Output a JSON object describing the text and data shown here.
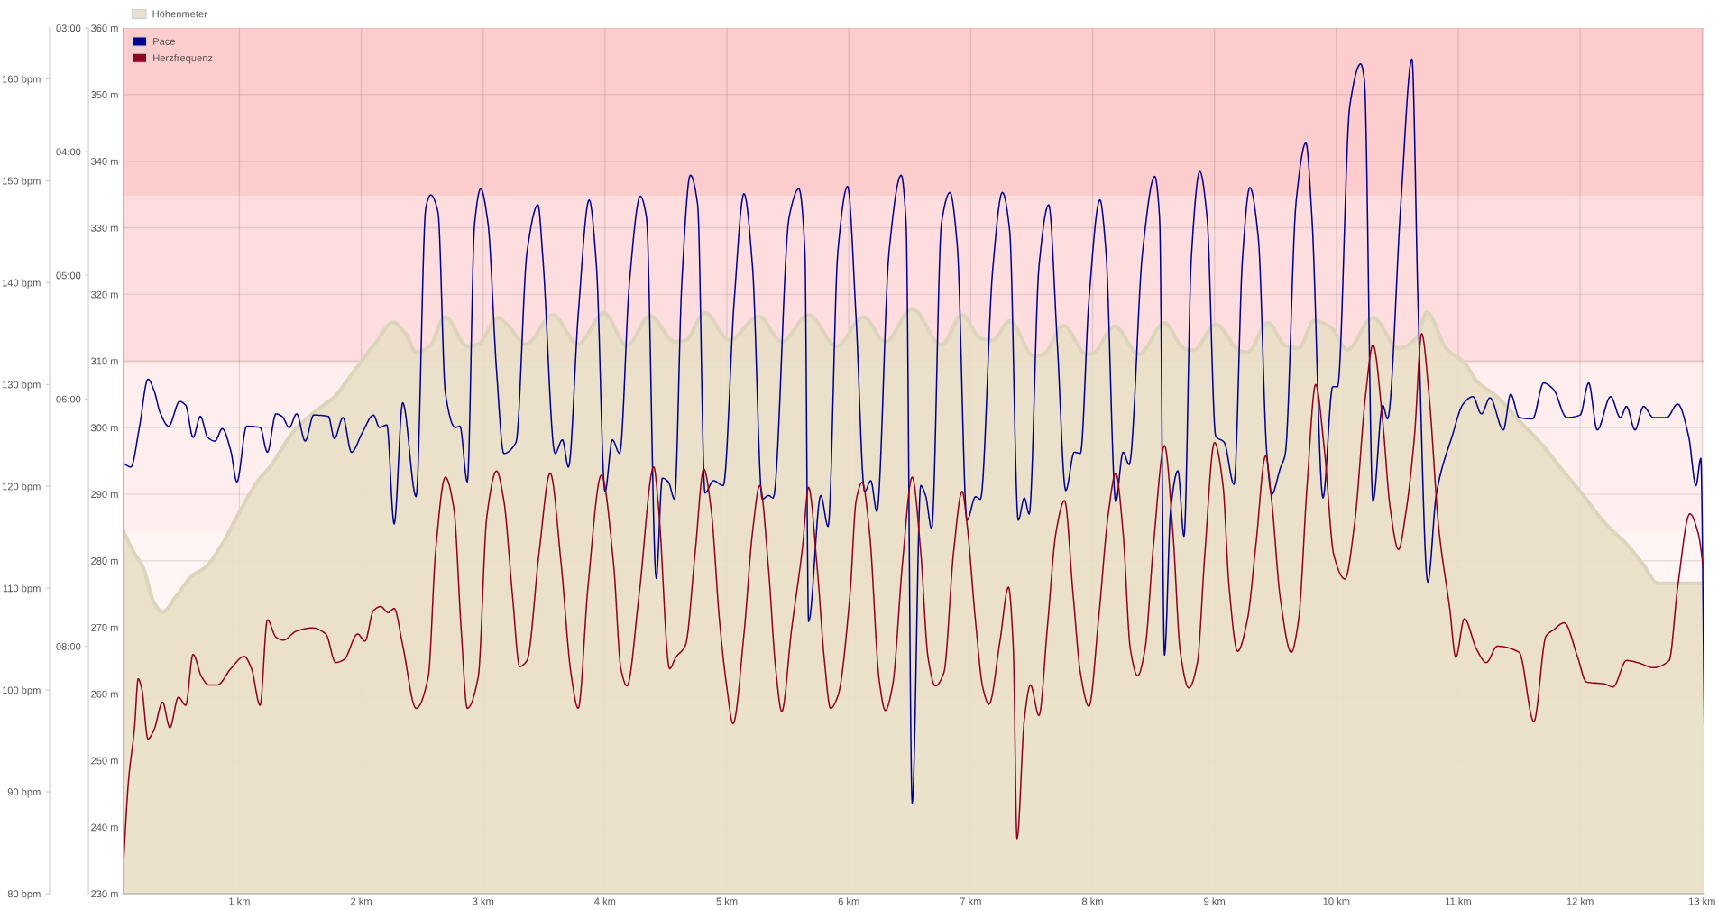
{
  "chart_data": {
    "type": "area",
    "series": [
      {
        "name": "Höhenmeter",
        "color": "#e9dfc6",
        "x": [
          0.05,
          0.13,
          0.21,
          0.3,
          0.37,
          0.48,
          0.61,
          0.72,
          0.86,
          0.98,
          1.15,
          1.26,
          1.44,
          1.63,
          1.79,
          1.89,
          2.02,
          2.11,
          2.26,
          2.37,
          2.45,
          2.56,
          2.69,
          2.87,
          2.96,
          3.12,
          3.2,
          3.35,
          3.57,
          3.78,
          3.99,
          4.18,
          4.37,
          4.57,
          4.66,
          4.82,
          5.02,
          5.26,
          5.45,
          5.67,
          5.9,
          6.12,
          6.3,
          6.52,
          6.76,
          6.93,
          7.08,
          7.18,
          7.32,
          7.52,
          7.6,
          7.76,
          7.95,
          8.0,
          8.18,
          8.38,
          8.59,
          8.75,
          8.83,
          9.01,
          9.21,
          9.27,
          9.44,
          9.58,
          9.69,
          9.82,
          9.96,
          10.09,
          10.3,
          10.51,
          10.66,
          10.74,
          10.9,
          11.06,
          11.15,
          11.32,
          11.5,
          11.67,
          11.85,
          12.03,
          12.2,
          12.38,
          12.51,
          12.64,
          13.02
        ],
        "values": [
          284.4,
          281.4,
          279.0,
          273.7,
          272.3,
          274.6,
          277.7,
          279.0,
          282.5,
          286.6,
          291.9,
          294.3,
          299.3,
          302.5,
          304.8,
          307.2,
          310.4,
          312.5,
          315.8,
          313.9,
          311.3,
          312.2,
          316.6,
          312.2,
          312.5,
          316.5,
          315.4,
          312.5,
          316.9,
          312.5,
          317.2,
          312.3,
          316.8,
          312.9,
          313.1,
          317.2,
          313.1,
          316.7,
          312.9,
          316.9,
          312.2,
          316.6,
          312.9,
          317.8,
          312.4,
          316.9,
          313.4,
          313.1,
          316.0,
          310.7,
          311.0,
          315.3,
          311.0,
          311.1,
          315.2,
          311.0,
          315.7,
          311.9,
          311.6,
          315.5,
          311.5,
          311.3,
          315.7,
          312.3,
          311.9,
          316.1,
          314.9,
          311.7,
          316.5,
          311.9,
          313.5,
          317.3,
          311.9,
          309.5,
          307.0,
          304.6,
          301.0,
          297.8,
          293.7,
          289.7,
          285.7,
          282.5,
          279.6,
          276.6,
          276.6
        ]
      },
      {
        "name": "Pace",
        "type": "line",
        "axis": "y2",
        "color": "#000091",
        "x": [
          0.05,
          0.11,
          0.18,
          0.25,
          0.3,
          0.35,
          0.42,
          0.51,
          0.56,
          0.62,
          0.68,
          0.74,
          0.8,
          0.86,
          0.93,
          0.98,
          1.06,
          1.17,
          1.23,
          1.3,
          1.35,
          1.41,
          1.47,
          1.54,
          1.61,
          1.73,
          1.78,
          1.85,
          1.92,
          2.01,
          2.1,
          2.15,
          2.21,
          2.27,
          2.34,
          2.45,
          2.53,
          2.57,
          2.63,
          2.69,
          2.77,
          2.81,
          2.87,
          2.93,
          2.98,
          3.04,
          3.11,
          3.17,
          3.27,
          3.36,
          3.45,
          3.49,
          3.59,
          3.65,
          3.7,
          3.78,
          3.87,
          3.93,
          4.0,
          4.06,
          4.12,
          4.2,
          4.29,
          4.34,
          4.42,
          4.47,
          4.52,
          4.57,
          4.63,
          4.7,
          4.76,
          4.82,
          4.89,
          4.97,
          5.06,
          5.14,
          5.21,
          5.29,
          5.34,
          5.38,
          5.51,
          5.59,
          5.64,
          5.67,
          5.77,
          5.83,
          5.91,
          5.99,
          6.06,
          6.13,
          6.18,
          6.23,
          6.33,
          6.43,
          6.47,
          6.52,
          6.59,
          6.63,
          6.68,
          6.76,
          6.83,
          6.89,
          6.97,
          7.04,
          7.08,
          7.18,
          7.26,
          7.32,
          7.39,
          7.44,
          7.48,
          7.56,
          7.64,
          7.71,
          7.78,
          7.85,
          7.9,
          7.97,
          8.06,
          8.11,
          8.19,
          8.25,
          8.3,
          8.41,
          8.51,
          8.55,
          8.59,
          8.64,
          8.7,
          8.75,
          8.81,
          8.88,
          8.94,
          9.01,
          9.08,
          9.16,
          9.23,
          9.29,
          9.36,
          9.43,
          9.47,
          9.54,
          9.58,
          9.67,
          9.75,
          9.8,
          9.89,
          9.97,
          10.01,
          10.11,
          10.2,
          10.23,
          10.3,
          10.38,
          10.42,
          10.53,
          10.62,
          10.67,
          10.75,
          10.82,
          10.95,
          11.04,
          11.12,
          11.19,
          11.26,
          11.37,
          11.43,
          11.5,
          11.61,
          11.7,
          11.78,
          11.89,
          12.0,
          12.07,
          12.14,
          12.25,
          12.33,
          12.38,
          12.45,
          12.52,
          12.6,
          12.71,
          12.8,
          12.89,
          12.95,
          12.99,
          13.02
        ],
        "values": [
          6.52,
          6.55,
          6.23,
          5.84,
          5.93,
          6.11,
          6.22,
          6.02,
          6.05,
          6.31,
          6.14,
          6.31,
          6.34,
          6.24,
          6.42,
          6.67,
          6.22,
          6.23,
          6.43,
          6.12,
          6.14,
          6.23,
          6.12,
          6.34,
          6.13,
          6.14,
          6.32,
          6.15,
          6.43,
          6.27,
          6.13,
          6.23,
          6.21,
          7.01,
          6.03,
          6.79,
          4.45,
          4.35,
          4.49,
          5.95,
          6.23,
          6.22,
          6.67,
          4.58,
          4.3,
          4.58,
          5.77,
          6.44,
          6.35,
          4.81,
          4.43,
          4.86,
          6.44,
          6.33,
          6.55,
          5.32,
          4.39,
          4.93,
          6.75,
          6.33,
          6.44,
          5.06,
          4.36,
          4.53,
          7.45,
          6.64,
          6.67,
          6.81,
          5.06,
          4.19,
          4.43,
          6.76,
          6.66,
          6.7,
          5.2,
          4.34,
          4.93,
          6.81,
          6.78,
          6.8,
          4.53,
          4.3,
          4.81,
          7.8,
          6.78,
          7.03,
          4.81,
          4.28,
          5.35,
          6.75,
          6.66,
          6.91,
          4.81,
          4.19,
          4.58,
          9.27,
          6.7,
          6.78,
          7.05,
          4.58,
          4.33,
          4.76,
          6.98,
          6.79,
          6.81,
          4.96,
          4.33,
          4.64,
          6.98,
          6.8,
          6.93,
          4.93,
          4.43,
          5.54,
          6.74,
          6.43,
          6.44,
          5.2,
          4.39,
          4.81,
          6.83,
          6.43,
          6.53,
          4.81,
          4.2,
          4.54,
          8.07,
          6.9,
          6.58,
          7.11,
          4.86,
          4.16,
          4.54,
          6.3,
          6.35,
          6.69,
          4.86,
          4.29,
          4.7,
          6.45,
          6.77,
          6.56,
          6.45,
          4.4,
          3.93,
          4.54,
          6.8,
          5.9,
          5.9,
          3.63,
          3.29,
          3.42,
          6.83,
          6.05,
          6.16,
          4.4,
          3.25,
          5.23,
          7.48,
          6.77,
          6.3,
          6.04,
          5.98,
          6.12,
          5.99,
          6.25,
          5.96,
          6.15,
          6.16,
          5.87,
          5.92,
          6.15,
          6.13,
          5.87,
          6.25,
          5.98,
          6.15,
          6.06,
          6.25,
          6.06,
          6.15,
          6.15,
          6.04,
          6.3,
          6.7,
          6.48,
          8.79
        ]
      },
      {
        "name": "Herzfrequenz",
        "type": "line",
        "axis": "y3",
        "color": "#940020",
        "x": [
          0.05,
          0.09,
          0.14,
          0.17,
          0.2,
          0.25,
          0.3,
          0.37,
          0.43,
          0.5,
          0.56,
          0.62,
          0.69,
          0.75,
          0.82,
          0.93,
          1.04,
          1.1,
          1.17,
          1.23,
          1.3,
          1.36,
          1.47,
          1.6,
          1.71,
          1.79,
          1.86,
          1.97,
          2.03,
          2.1,
          2.16,
          2.22,
          2.27,
          2.34,
          2.45,
          2.55,
          2.61,
          2.69,
          2.76,
          2.82,
          2.87,
          2.96,
          3.03,
          3.11,
          3.17,
          3.24,
          3.3,
          3.36,
          3.46,
          3.55,
          3.64,
          3.72,
          3.78,
          3.86,
          3.97,
          4.07,
          4.13,
          4.18,
          4.28,
          4.4,
          4.44,
          4.53,
          4.58,
          4.66,
          4.74,
          4.81,
          4.87,
          4.94,
          5.0,
          5.05,
          5.14,
          5.21,
          5.27,
          5.34,
          5.4,
          5.45,
          5.53,
          5.62,
          5.67,
          5.74,
          5.8,
          5.85,
          5.91,
          6.01,
          6.06,
          6.11,
          6.17,
          6.25,
          6.3,
          6.36,
          6.44,
          6.52,
          6.59,
          6.65,
          6.71,
          6.78,
          6.86,
          6.93,
          6.97,
          7.04,
          7.1,
          7.15,
          7.24,
          7.31,
          7.35,
          7.38,
          7.44,
          7.49,
          7.56,
          7.63,
          7.7,
          7.77,
          7.84,
          7.9,
          7.97,
          8.05,
          8.13,
          8.19,
          8.25,
          8.31,
          8.37,
          8.43,
          8.5,
          8.59,
          8.66,
          8.72,
          8.79,
          8.86,
          8.92,
          9.0,
          9.07,
          9.12,
          9.19,
          9.27,
          9.34,
          9.42,
          9.47,
          9.54,
          9.63,
          9.69,
          9.76,
          9.83,
          9.9,
          9.98,
          10.07,
          10.15,
          10.24,
          10.3,
          10.38,
          10.44,
          10.51,
          10.57,
          10.64,
          10.7,
          10.76,
          10.84,
          10.93,
          10.98,
          11.05,
          11.15,
          11.23,
          11.32,
          11.5,
          11.62,
          11.72,
          11.78,
          11.87,
          11.98,
          12.05,
          12.2,
          12.27,
          12.38,
          12.47,
          12.6,
          12.73,
          12.8,
          12.9,
          12.97,
          13.02
        ],
        "values": [
          83.1,
          91.0,
          96.3,
          101.1,
          100.1,
          95.2,
          96.1,
          98.8,
          96.3,
          99.3,
          98.5,
          103.5,
          101.3,
          100.5,
          100.5,
          102.1,
          103.3,
          102.1,
          98.5,
          106.9,
          105.2,
          104.9,
          105.8,
          106.1,
          105.5,
          102.7,
          103.0,
          105.5,
          104.8,
          107.8,
          108.2,
          107.6,
          108.0,
          104.4,
          98.2,
          101.3,
          113.6,
          120.9,
          117.8,
          105.9,
          98.2,
          101.3,
          117.0,
          121.5,
          118.6,
          109.4,
          102.3,
          102.9,
          113.6,
          121.3,
          112.4,
          101.7,
          98.2,
          110.1,
          121.1,
          112.4,
          102.1,
          100.4,
          109.4,
          121.9,
          117.8,
          102.1,
          103.2,
          104.4,
          113.6,
          121.7,
          117.8,
          106.7,
          100.2,
          96.7,
          105.5,
          115.5,
          120.1,
          112.1,
          102.1,
          97.9,
          105.9,
          114.0,
          119.9,
          112.1,
          102.9,
          98.2,
          99.4,
          109.4,
          118.6,
          120.4,
          115.5,
          100.9,
          98.0,
          100.5,
          112.4,
          120.9,
          113.6,
          103.2,
          100.4,
          101.7,
          113.6,
          119.5,
          116.3,
          106.7,
          100.2,
          98.6,
          104.8,
          110.1,
          104.0,
          85.4,
          97.1,
          100.5,
          97.5,
          106.3,
          115.5,
          118.6,
          109.4,
          101.7,
          98.4,
          107.1,
          117.4,
          121.3,
          115.5,
          104.0,
          101.4,
          104.0,
          114.3,
          124.0,
          115.3,
          103.7,
          100.2,
          102.7,
          113.2,
          124.3,
          120.1,
          110.1,
          103.8,
          106.9,
          114.3,
          123.0,
          118.5,
          109.0,
          103.7,
          106.9,
          120.1,
          130.0,
          123.8,
          113.2,
          110.9,
          116.4,
          129.0,
          133.9,
          126.4,
          118.0,
          113.8,
          117.4,
          124.8,
          135.0,
          129.0,
          115.9,
          108.0,
          103.2,
          107.0,
          104.0,
          102.7,
          104.3,
          103.7,
          96.9,
          105.3,
          105.9,
          106.6,
          103.2,
          100.8,
          100.6,
          100.3,
          102.9,
          102.7,
          102.2,
          102.9,
          110.1,
          117.3,
          115.3,
          111.1
        ]
      }
    ],
    "xlim": [
      0.05,
      13.02
    ],
    "xticks": [
      {
        "value": 1,
        "label": "1 km"
      },
      {
        "value": 2,
        "label": "2 km"
      },
      {
        "value": 3,
        "label": "3 km"
      },
      {
        "value": 4,
        "label": "4 km"
      },
      {
        "value": 5,
        "label": "5 km"
      },
      {
        "value": 6,
        "label": "6 km"
      },
      {
        "value": 7,
        "label": "7 km"
      },
      {
        "value": 8,
        "label": "8 km"
      },
      {
        "value": 9,
        "label": "9 km"
      },
      {
        "value": 10,
        "label": "10 km"
      },
      {
        "value": 11,
        "label": "11 km"
      },
      {
        "value": 12,
        "label": "12 km"
      },
      {
        "value": 13,
        "label": "13 km"
      }
    ],
    "ylim": [
      230,
      360
    ],
    "yticks": [
      {
        "value": 230,
        "label": "230 m"
      },
      {
        "value": 240,
        "label": "240 m"
      },
      {
        "value": 250,
        "label": "250 m"
      },
      {
        "value": 260,
        "label": "260 m"
      },
      {
        "value": 270,
        "label": "270 m"
      },
      {
        "value": 280,
        "label": "280 m"
      },
      {
        "value": 290,
        "label": "290 m"
      },
      {
        "value": 300,
        "label": "300 m"
      },
      {
        "value": 310,
        "label": "310 m"
      },
      {
        "value": 320,
        "label": "320 m"
      },
      {
        "value": 330,
        "label": "330 m"
      },
      {
        "value": 340,
        "label": "340 m"
      },
      {
        "value": 350,
        "label": "350 m"
      },
      {
        "value": 360,
        "label": "360 m"
      }
    ],
    "y2lim": [
      10,
      3
    ],
    "y2ticks": [
      {
        "value": 3,
        "label": "03:00"
      },
      {
        "value": 4,
        "label": "04:00"
      },
      {
        "value": 5,
        "label": "05:00"
      },
      {
        "value": 6,
        "label": "06:00"
      },
      {
        "value": 8,
        "label": "08:00"
      }
    ],
    "y3lim": [
      80,
      165
    ],
    "y3ticks": [
      {
        "value": 80,
        "label": "80 bpm"
      },
      {
        "value": 90,
        "label": "90 bpm"
      },
      {
        "value": 100,
        "label": "100 bpm"
      },
      {
        "value": 110,
        "label": "110 bpm"
      },
      {
        "value": 120,
        "label": "120 bpm"
      },
      {
        "value": 130,
        "label": "130 bpm"
      },
      {
        "value": 140,
        "label": "140 bpm"
      },
      {
        "value": 150,
        "label": "150 bpm"
      },
      {
        "value": 160,
        "label": "160 bpm"
      }
    ],
    "bands": [
      {
        "axis": "y3",
        "from": 148.5,
        "to": 165,
        "color": "#fdcccc"
      },
      {
        "axis": "y3",
        "from": 132,
        "to": 148.5,
        "color": "#fddddd"
      },
      {
        "axis": "y3",
        "from": 115.5,
        "to": 132,
        "color": "#feeeee"
      },
      {
        "axis": "y3",
        "from": 99,
        "to": 115.5,
        "color": "#fff5f5"
      }
    ],
    "grid": true,
    "legend": "top left"
  }
}
